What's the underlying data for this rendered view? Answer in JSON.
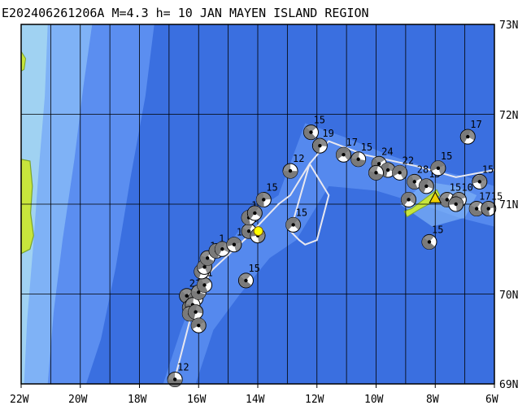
{
  "header": {
    "title": "E202406261206A M=4.3 h= 10 JAN MAYEN ISLAND REGION"
  },
  "lat_labels": [
    "73N",
    "72N",
    "71N",
    "70N",
    "69N"
  ],
  "lon_labels": [
    "22W",
    "20W",
    "18W",
    "16W",
    "14W",
    "12W",
    "10W",
    "8W",
    "6W"
  ],
  "colors": {
    "deep_water": "#3a6fe0",
    "mid_water": "#5b8ef0",
    "shelf_water": "#7fb2f6",
    "shallow_water": "#a0d2f2",
    "land": "#c8e63c",
    "land_edge": "#7ca52c",
    "grid": "#000000",
    "plate_boundary": "#e8e8f0",
    "epicenter_marker": "#ffff00",
    "volcano_marker": "#f0d000"
  },
  "icons": {
    "mechanism": "focal-mechanism-beachball-icon",
    "epicenter": "epicenter-star-icon",
    "volcano": "volcano-triangle-icon"
  },
  "mechanisms": [
    {
      "lon": -16.8,
      "lat": 69.05,
      "label": "12"
    },
    {
      "lon": -16.4,
      "lat": 69.98,
      "label": "21"
    },
    {
      "lon": -16.1,
      "lat": 69.95,
      "label": "1"
    },
    {
      "lon": -16.3,
      "lat": 69.85,
      "label": ""
    },
    {
      "lon": -16.2,
      "lat": 69.88,
      "label": "1"
    },
    {
      "lon": -16.3,
      "lat": 69.78,
      "label": ""
    },
    {
      "lon": -16.1,
      "lat": 69.8,
      "label": ""
    },
    {
      "lon": -16.0,
      "lat": 69.65,
      "label": ""
    },
    {
      "lon": -16.0,
      "lat": 70.02,
      "label": ""
    },
    {
      "lon": -15.8,
      "lat": 70.1,
      "label": "1"
    },
    {
      "lon": -15.9,
      "lat": 70.25,
      "label": "1"
    },
    {
      "lon": -15.8,
      "lat": 70.3,
      "label": "1"
    },
    {
      "lon": -15.7,
      "lat": 70.4,
      "label": "1"
    },
    {
      "lon": -15.4,
      "lat": 70.48,
      "label": "1"
    },
    {
      "lon": -15.2,
      "lat": 70.5,
      "label": ""
    },
    {
      "lon": -14.8,
      "lat": 70.55,
      "label": "12"
    },
    {
      "lon": -14.3,
      "lat": 70.7,
      "label": "1"
    },
    {
      "lon": -14.3,
      "lat": 70.85,
      "label": "1"
    },
    {
      "lon": -14.1,
      "lat": 70.9,
      "label": "12"
    },
    {
      "lon": -14.0,
      "lat": 70.65,
      "label": ""
    },
    {
      "lon": -14.4,
      "lat": 70.15,
      "label": "15"
    },
    {
      "lon": -13.8,
      "lat": 71.05,
      "label": "15"
    },
    {
      "lon": -12.8,
      "lat": 70.77,
      "label": "15"
    },
    {
      "lon": -12.9,
      "lat": 71.37,
      "label": "12"
    },
    {
      "lon": -12.2,
      "lat": 71.8,
      "label": "15"
    },
    {
      "lon": -11.9,
      "lat": 71.65,
      "label": "19"
    },
    {
      "lon": -11.1,
      "lat": 71.55,
      "label": "17"
    },
    {
      "lon": -10.6,
      "lat": 71.5,
      "label": "15"
    },
    {
      "lon": -9.9,
      "lat": 71.45,
      "label": "24"
    },
    {
      "lon": -9.6,
      "lat": 71.38,
      "label": ""
    },
    {
      "lon": -9.2,
      "lat": 71.35,
      "label": "22"
    },
    {
      "lon": -10.0,
      "lat": 71.35,
      "label": ""
    },
    {
      "lon": -8.7,
      "lat": 71.25,
      "label": "28"
    },
    {
      "lon": -8.3,
      "lat": 71.2,
      "label": "15"
    },
    {
      "lon": -7.9,
      "lat": 71.4,
      "label": "15"
    },
    {
      "lon": -7.6,
      "lat": 71.05,
      "label": "15"
    },
    {
      "lon": -7.2,
      "lat": 71.05,
      "label": "10"
    },
    {
      "lon": -6.9,
      "lat": 71.75,
      "label": "17"
    },
    {
      "lon": -6.5,
      "lat": 71.25,
      "label": "15"
    },
    {
      "lon": -6.6,
      "lat": 70.95,
      "label": "17"
    },
    {
      "lon": -6.2,
      "lat": 70.95,
      "label": "15"
    },
    {
      "lon": -8.9,
      "lat": 71.05,
      "label": ""
    },
    {
      "lon": -7.3,
      "lat": 71.0,
      "label": ""
    },
    {
      "lon": -8.2,
      "lat": 70.58,
      "label": "15"
    }
  ],
  "epicenter": {
    "lon": -13.98,
    "lat": 70.7
  },
  "volcano": {
    "lon": -8.0,
    "lat": 71.07
  }
}
